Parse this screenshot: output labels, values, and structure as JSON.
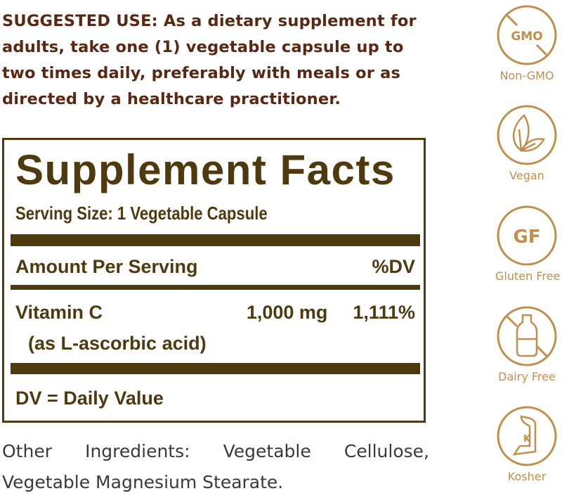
{
  "suggested_use": "SUGGESTED USE: As a dietary supplement for adults, take one (1) vegetable capsule up to two times daily, preferably with meals or as directed by a healthcare practitioner.",
  "facts": {
    "title": "Supplement Facts",
    "serving_size": "Serving Size: 1 Vegetable Capsule",
    "header_left": "Amount Per Serving",
    "header_right": "%DV",
    "nutrient": {
      "name": "Vitamin C",
      "amount": "1,000 mg",
      "dv": "1,111%",
      "source": "(as L-ascorbic acid)"
    },
    "footer": "DV = Daily Value"
  },
  "other_ingredients": "Other Ingredients: Vegetable Cellulose, Vegetable Magnesium Stearate.",
  "badges": [
    {
      "icon": "gmo-crossed-icon",
      "icon_text": "GMO",
      "label": "Non-GMO"
    },
    {
      "icon": "leaf-icon",
      "label": "Vegan"
    },
    {
      "icon": "gluten-free-icon",
      "icon_text": "GF",
      "label": "Gluten Free"
    },
    {
      "icon": "milk-bottle-crossed-icon",
      "label": "Dairy Free"
    },
    {
      "icon": "kosher-icon",
      "icon_text": "K",
      "label": "Kosher"
    }
  ],
  "colors": {
    "text": "#5a2812",
    "label_brown": "#4e3a0e",
    "badge_gold": "#c08f4e"
  }
}
